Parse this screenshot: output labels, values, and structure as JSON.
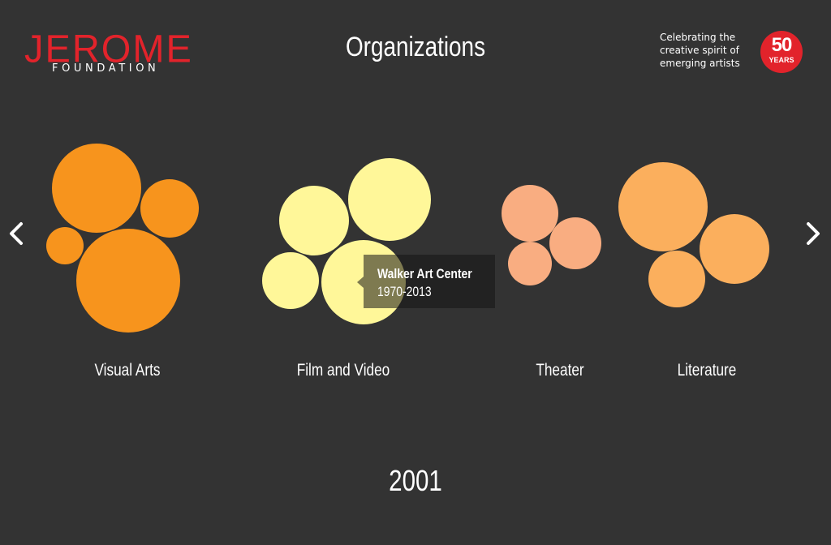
{
  "header": {
    "logo_word": "JEROME",
    "logo_sub": "FOUNDATION",
    "title": "Organizations",
    "tagline": [
      "Celebrating the",
      "creative spirit of",
      "emerging artists"
    ],
    "badge_number": "50",
    "badge_label": "YEARS"
  },
  "nav": {
    "prev_icon": "chevron-left-icon",
    "next_icon": "chevron-right-icon"
  },
  "categories": [
    {
      "label": "Visual Arts",
      "color": "#f7941d",
      "bubbles": [
        {
          "name": "visual-arts-org-1"
        },
        {
          "name": "visual-arts-org-2"
        },
        {
          "name": "visual-arts-org-3"
        },
        {
          "name": "visual-arts-org-4"
        }
      ]
    },
    {
      "label": "Film and Video",
      "color": "#fff799",
      "bubbles": [
        {
          "name": "film-video-org-1"
        },
        {
          "name": "film-video-org-2"
        },
        {
          "name": "film-video-org-3"
        },
        {
          "name": "film-video-org-4"
        }
      ]
    },
    {
      "label": "Theater",
      "color": "#f9ad81",
      "bubbles": [
        {
          "name": "theater-org-1"
        },
        {
          "name": "theater-org-2"
        },
        {
          "name": "theater-org-3"
        }
      ]
    },
    {
      "label": "Literature",
      "color": "#fbaf5d",
      "bubbles": [
        {
          "name": "literature-org-1"
        },
        {
          "name": "literature-org-2"
        },
        {
          "name": "literature-org-3"
        }
      ]
    }
  ],
  "tooltip": {
    "name": "Walker Art Center",
    "years": "1970-2013"
  },
  "year": "2001",
  "colors": {
    "background": "#333333",
    "brand_red": "#e2232b"
  }
}
